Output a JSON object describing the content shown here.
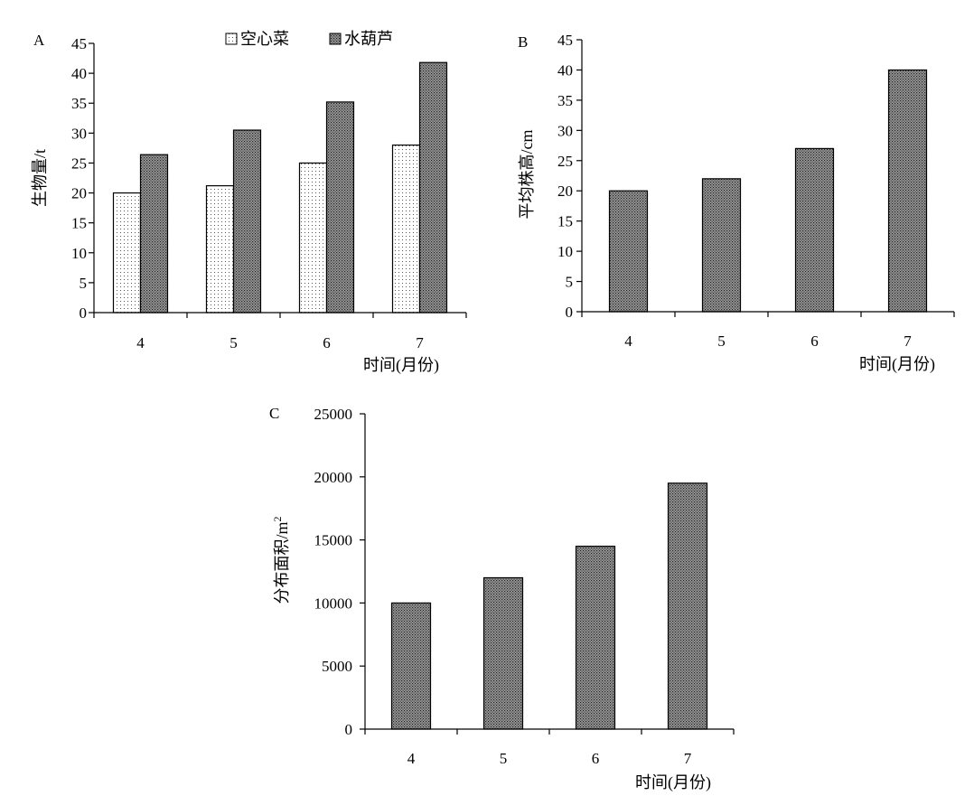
{
  "chart_data": [
    {
      "panel": "A",
      "type": "bar",
      "categories": [
        "4",
        "5",
        "6",
        "7"
      ],
      "series": [
        {
          "name": "空心菜",
          "values": [
            20,
            21.2,
            25,
            28
          ],
          "pattern": "sparse-dots"
        },
        {
          "name": "水葫芦",
          "values": [
            26.4,
            30.5,
            35.2,
            41.8
          ],
          "pattern": "dense-dots"
        }
      ],
      "ylabel": "生物量/t",
      "xlabel": "时间(月份)",
      "ylim": [
        0,
        45
      ],
      "yticks": [
        0,
        5,
        10,
        15,
        20,
        25,
        30,
        35,
        40,
        45
      ],
      "legend": "top-center",
      "grid": false
    },
    {
      "panel": "B",
      "type": "bar",
      "categories": [
        "4",
        "5",
        "6",
        "7"
      ],
      "series": [
        {
          "values": [
            20,
            22,
            27,
            40
          ],
          "pattern": "dense-dots"
        }
      ],
      "ylabel": "平均株高/cm",
      "xlabel": "时间(月份)",
      "ylim": [
        0,
        45
      ],
      "yticks": [
        0,
        5,
        10,
        15,
        20,
        25,
        30,
        35,
        40,
        45
      ],
      "grid": false
    },
    {
      "panel": "C",
      "type": "bar",
      "categories": [
        "4",
        "5",
        "6",
        "7"
      ],
      "series": [
        {
          "values": [
            10000,
            12000,
            14500,
            19500
          ],
          "pattern": "dense-dots"
        }
      ],
      "ylabel": "分布面积/m",
      "ylabel_superscript": "2",
      "xlabel": "时间(月份)",
      "ylim": [
        0,
        25000
      ],
      "yticks": [
        0,
        5000,
        10000,
        15000,
        20000,
        25000
      ],
      "grid": false
    }
  ]
}
